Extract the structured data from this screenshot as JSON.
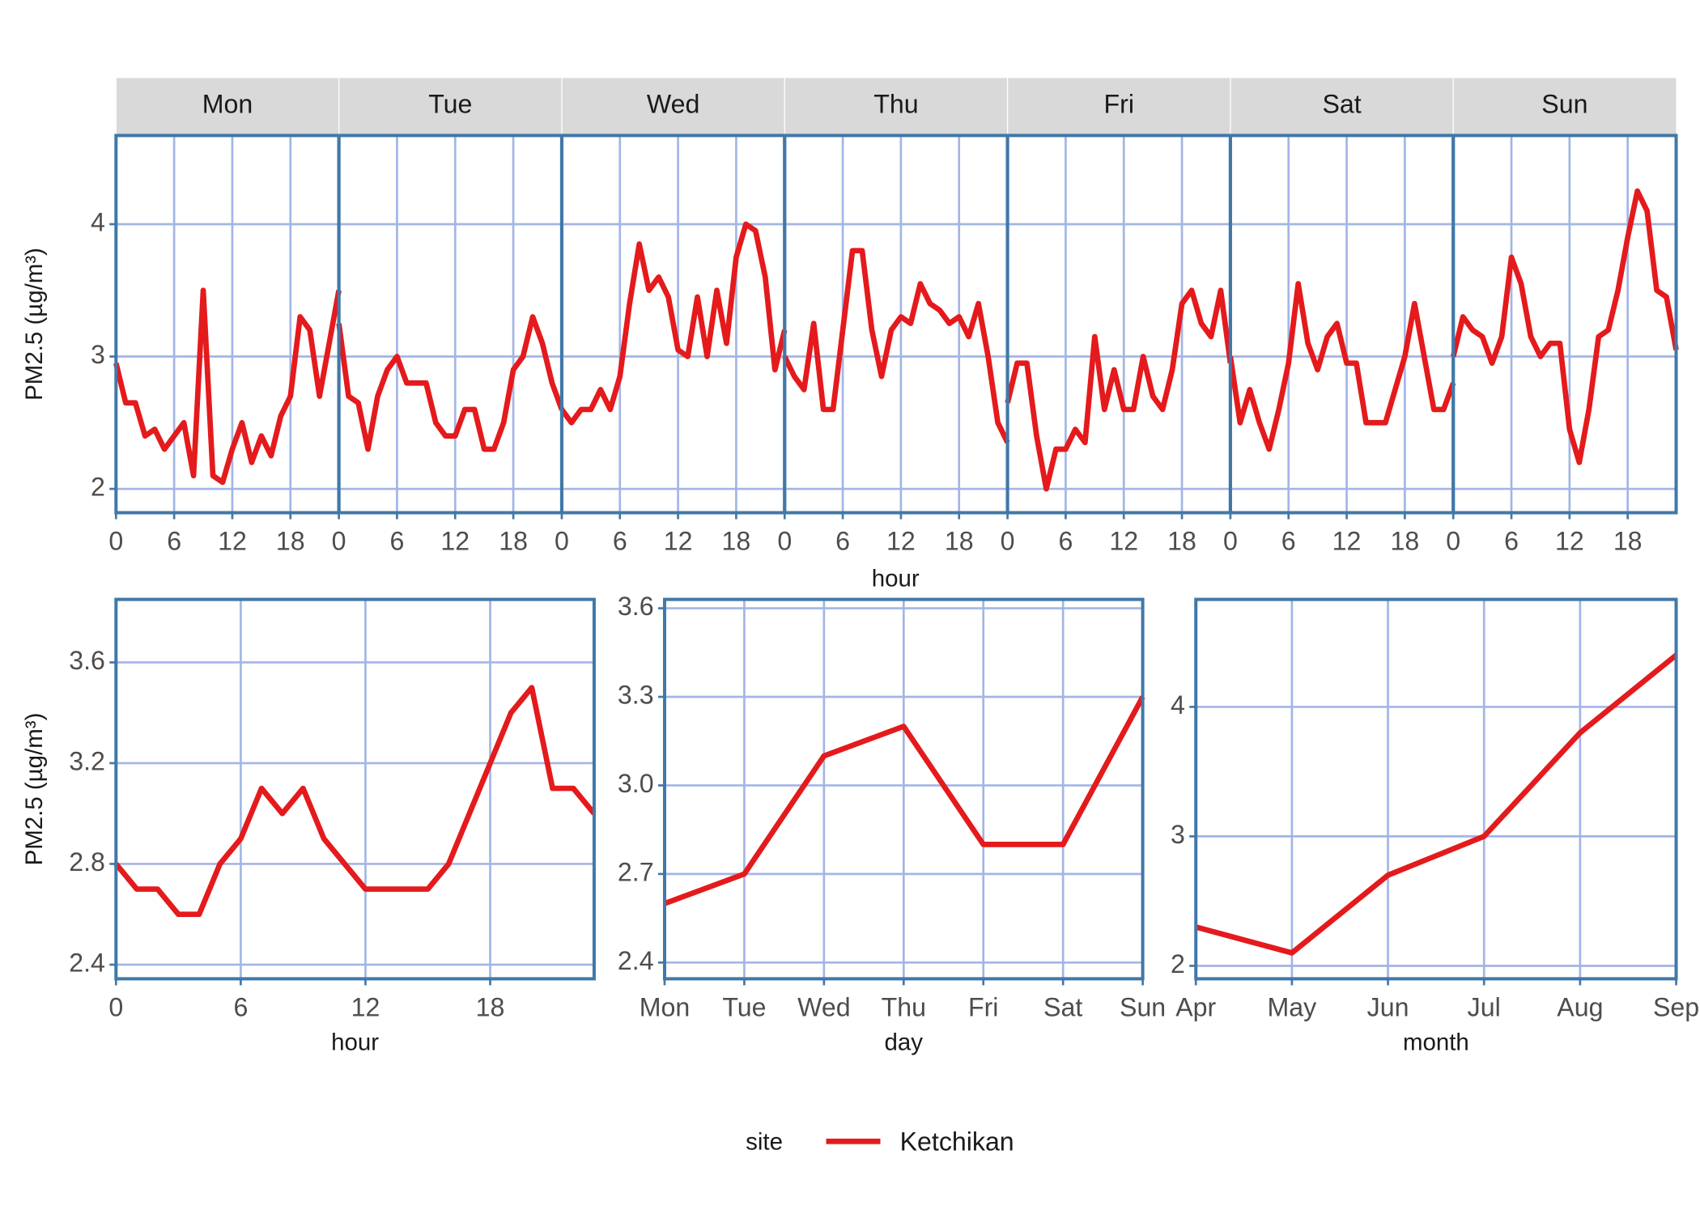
{
  "legend": {
    "title": "site",
    "series": [
      {
        "name": "Ketchikan",
        "color": "#e41a1c"
      }
    ]
  },
  "chart_data": [
    {
      "type": "line",
      "xlabel": "hour",
      "ylabel": "PM2.5 (µg/m³)",
      "xlim": [
        0,
        23
      ],
      "xticks": [
        0,
        6,
        12,
        18
      ],
      "ylim": [
        1.82,
        4.67
      ],
      "yticks": [
        2,
        3,
        4
      ],
      "grid": true,
      "panels": [
        {
          "title": "Mon",
          "values": [
            2.95,
            2.65,
            2.65,
            2.4,
            2.45,
            2.3,
            2.4,
            2.5,
            2.1,
            3.5,
            2.1,
            2.05,
            2.3,
            2.5,
            2.2,
            2.4,
            2.25,
            2.55,
            2.7,
            3.3,
            3.2,
            2.7,
            3.1,
            3.5
          ]
        },
        {
          "title": "Tue",
          "values": [
            3.25,
            2.7,
            2.65,
            2.3,
            2.7,
            2.9,
            3.0,
            2.8,
            2.8,
            2.8,
            2.5,
            2.4,
            2.4,
            2.6,
            2.6,
            2.3,
            2.3,
            2.5,
            2.9,
            3.0,
            3.3,
            3.1,
            2.8,
            2.6
          ]
        },
        {
          "title": "Wed",
          "values": [
            2.6,
            2.5,
            2.6,
            2.6,
            2.75,
            2.6,
            2.85,
            3.4,
            3.85,
            3.5,
            3.6,
            3.45,
            3.05,
            3.0,
            3.45,
            3.0,
            3.5,
            3.1,
            3.75,
            4.0,
            3.95,
            3.6,
            2.9,
            3.2
          ]
        },
        {
          "title": "Thu",
          "values": [
            3.0,
            2.85,
            2.75,
            3.25,
            2.6,
            2.6,
            3.2,
            3.8,
            3.8,
            3.2,
            2.85,
            3.2,
            3.3,
            3.25,
            3.55,
            3.4,
            3.35,
            3.25,
            3.3,
            3.15,
            3.4,
            3.0,
            2.5,
            2.35
          ]
        },
        {
          "title": "Fri",
          "values": [
            2.65,
            2.95,
            2.95,
            2.4,
            2.0,
            2.3,
            2.3,
            2.45,
            2.35,
            3.15,
            2.6,
            2.9,
            2.6,
            2.6,
            3.0,
            2.7,
            2.6,
            2.9,
            3.4,
            3.5,
            3.25,
            3.15,
            3.5,
            2.95
          ]
        },
        {
          "title": "Sat",
          "values": [
            3.0,
            2.5,
            2.75,
            2.5,
            2.3,
            2.6,
            2.95,
            3.55,
            3.1,
            2.9,
            3.15,
            3.25,
            2.95,
            2.95,
            2.5,
            2.5,
            2.5,
            2.75,
            3.0,
            3.4,
            3.0,
            2.6,
            2.6,
            2.8
          ]
        },
        {
          "title": "Sun",
          "values": [
            3.0,
            3.3,
            3.2,
            3.15,
            2.95,
            3.15,
            3.75,
            3.55,
            3.15,
            3.0,
            3.1,
            3.1,
            2.45,
            2.2,
            2.6,
            3.15,
            3.2,
            3.5,
            3.9,
            4.25,
            4.1,
            3.5,
            3.45,
            3.05
          ]
        }
      ]
    },
    {
      "type": "line",
      "xlabel": "hour",
      "ylabel": "PM2.5 (µg/m³)",
      "xlim": [
        0,
        23
      ],
      "xticks": [
        0,
        6,
        12,
        18
      ],
      "ylim": [
        2.344,
        3.85
      ],
      "yticks": [
        2.4,
        2.8,
        3.2,
        3.6
      ],
      "grid": true,
      "values": [
        2.8,
        2.7,
        2.7,
        2.6,
        2.6,
        2.8,
        2.9,
        3.1,
        3.0,
        3.1,
        2.9,
        2.8,
        2.7,
        2.7,
        2.7,
        2.7,
        2.8,
        3.0,
        3.2,
        3.4,
        3.5,
        3.1,
        3.1,
        3.0
      ]
    },
    {
      "type": "line",
      "xlabel": "day",
      "categories": [
        "Mon",
        "Tue",
        "Wed",
        "Thu",
        "Fri",
        "Sat",
        "Sun"
      ],
      "ylim": [
        2.345,
        3.63
      ],
      "yticks": [
        2.4,
        2.7,
        {
          "value": 3,
          "label": "3.0"
        },
        3.3,
        3.6
      ],
      "grid": true,
      "values": [
        2.6,
        2.7,
        3.1,
        3.2,
        2.8,
        2.8,
        3.3
      ]
    },
    {
      "type": "line",
      "xlabel": "month",
      "categories": [
        "Apr",
        "May",
        "Jun",
        "Jul",
        "Aug",
        "Sep"
      ],
      "ylim": [
        1.9,
        4.83
      ],
      "yticks": [
        2,
        3,
        4
      ],
      "grid": true,
      "values": [
        2.3,
        2.1,
        2.7,
        3.0,
        3.8,
        4.4
      ]
    }
  ]
}
